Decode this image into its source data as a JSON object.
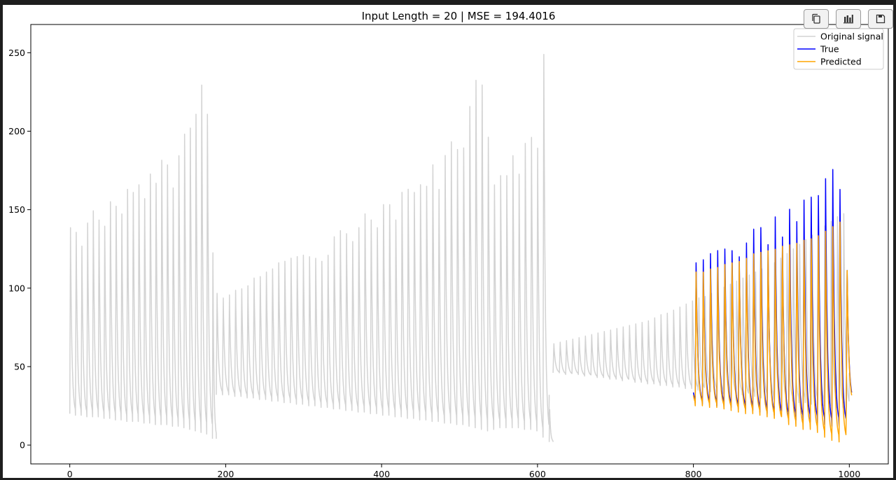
{
  "toolbar": {
    "buttons": [
      {
        "name": "copy-icon"
      },
      {
        "name": "bar-chart-icon"
      },
      {
        "name": "save-icon"
      }
    ]
  },
  "colors": {
    "original": "#d3d3d3",
    "true": "#0000ff",
    "predicted": "#ffa500",
    "axis": "#000000"
  },
  "chart_data": {
    "type": "line",
    "title": "Input Length = 20 | MSE = 194.4016",
    "xlabel": "",
    "ylabel": "",
    "xlim": [
      -50,
      1050
    ],
    "ylim": [
      -12,
      268
    ],
    "xticks": [
      0,
      200,
      400,
      600,
      800,
      1000
    ],
    "yticks": [
      0,
      50,
      100,
      150,
      200,
      250
    ],
    "grid": false,
    "legend": "top-right",
    "legend_entries": [
      "Original signal",
      "True",
      "Predicted"
    ],
    "series": [
      {
        "name": "Original signal",
        "segments": [
          {
            "x_start": 0,
            "x_end": 183,
            "cycle_start": 0,
            "peaks": [
              141,
              138,
              129,
              144,
              152,
              146,
              142,
              158,
              155,
              150,
              166,
              164,
              169,
              160,
              176,
              170,
              185,
              182,
              167,
              188,
              202,
              206,
              215,
              234,
              215
            ],
            "troughs": [
              20,
              19,
              19,
              18,
              18,
              18,
              17,
              17,
              16,
              16,
              15,
              15,
              15,
              14,
              14,
              13,
              13,
              13,
              12,
              12,
              11,
              10,
              9,
              8,
              7
            ]
          },
          {
            "x_start": 183,
            "x_end": 188,
            "cycle_start": 0,
            "peaks": [
              125
            ],
            "troughs": [
              4
            ]
          },
          {
            "x_start": 188,
            "x_end": 615,
            "cycle_start": 0,
            "peaks": [
              98,
              95,
              97,
              100,
              101,
              103,
              108,
              109,
              112,
              114,
              118,
              119,
              121,
              122,
              123,
              122,
              121,
              119,
              123,
              135,
              139,
              137,
              132,
              141,
              150,
              146,
              141,
              156,
              156,
              146,
              164,
              166,
              164,
              169,
              168,
              182,
              166,
              188,
              197,
              192,
              193,
              220,
              237,
              234,
              200,
              169,
              175,
              175,
              188,
              176,
              196,
              200,
              193,
              254
            ],
            "troughs": [
              32,
              32,
              32,
              31,
              31,
              30,
              30,
              29,
              29,
              28,
              28,
              27,
              27,
              26,
              26,
              25,
              25,
              24,
              24,
              23,
              23,
              22,
              22,
              21,
              21,
              20,
              20,
              19,
              19,
              18,
              18,
              17,
              17,
              16,
              16,
              15,
              15,
              14,
              14,
              13,
              13,
              12,
              11,
              10,
              9,
              10,
              11,
              11,
              11,
              11,
              10,
              10,
              9,
              5
            ]
          },
          {
            "x_start": 615,
            "x_end": 620,
            "cycle_start": 0,
            "peaks": [
              23
            ],
            "troughs": [
              2
            ]
          },
          {
            "x_start": 620,
            "x_end": 1000,
            "cycle_start": 0,
            "peaks": [
              65,
              66,
              67,
              68,
              69,
              70,
              71,
              72,
              73,
              74,
              75,
              76,
              77,
              78,
              79,
              80,
              82,
              84,
              85,
              87,
              89,
              91,
              93,
              95,
              96,
              98,
              100,
              102,
              104,
              106,
              108,
              110,
              112,
              114,
              116,
              118,
              121,
              124,
              127,
              130,
              133,
              136,
              139,
              142,
              145,
              148,
              150
            ],
            "troughs": [
              46,
              46,
              45,
              45,
              45,
              44,
              44,
              43,
              43,
              42,
              42,
              41,
              41,
              40,
              40,
              39,
              39,
              38,
              38,
              37,
              37,
              36,
              36,
              35,
              35,
              34,
              34,
              33,
              33,
              32,
              32,
              31,
              31,
              30,
              30,
              29,
              29,
              28,
              28,
              27,
              27,
              26,
              26,
              25,
              25,
              24,
              24
            ]
          }
        ]
      },
      {
        "name": "True",
        "segments": [
          {
            "x_start": 800,
            "x_end": 1003,
            "cycle_start": 0.75,
            "peaks": [
              113,
              118,
              120,
              124,
              126,
              127,
              126,
              122,
              131,
              140,
              141,
              130,
              148,
              135,
              153,
              145,
              159,
              161,
              162,
              173,
              179,
              166
            ],
            "troughs": [
              28,
              27,
              26,
              26,
              25,
              25,
              24,
              23,
              23,
              22,
              21,
              20,
              19,
              18,
              17,
              16,
              15,
              15,
              14,
              13,
              12,
              12
            ]
          }
        ]
      },
      {
        "name": "Predicted",
        "segments": [
          {
            "x_start": 800,
            "x_end": 1003,
            "cycle_start": 0.75,
            "peaks": [
              113,
              112,
              112,
              114,
              115,
              117,
              118,
              119,
              121,
              124,
              125,
              126,
              127,
              129,
              130,
              131,
              133,
              134,
              136,
              139,
              142,
              145
            ],
            "troughs": [
              26,
              25,
              25,
              24,
              24,
              23,
              22,
              21,
              20,
              20,
              19,
              18,
              17,
              15,
              13,
              12,
              10,
              10,
              8,
              5,
              3,
              2
            ]
          }
        ]
      }
    ]
  }
}
